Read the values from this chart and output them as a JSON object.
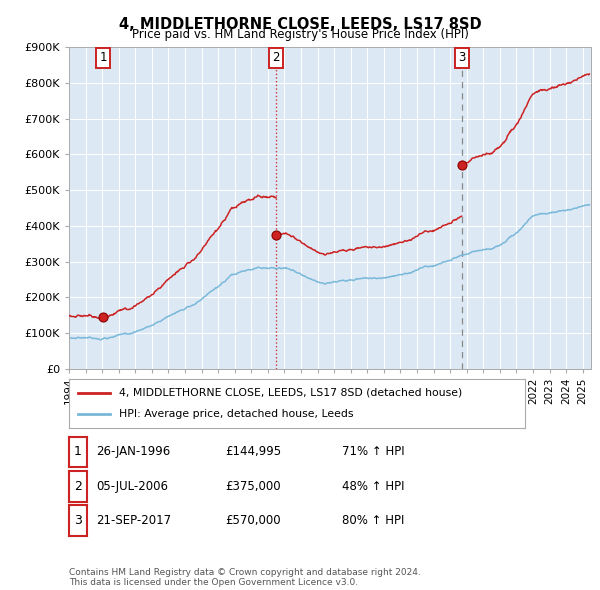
{
  "title": "4, MIDDLETHORNE CLOSE, LEEDS, LS17 8SD",
  "subtitle": "Price paid vs. HM Land Registry's House Price Index (HPI)",
  "plot_bg_color": "#dce9f5",
  "yticks": [
    0,
    100000,
    200000,
    300000,
    400000,
    500000,
    600000,
    700000,
    800000,
    900000
  ],
  "ytick_labels": [
    "£0",
    "£100K",
    "£200K",
    "£300K",
    "£400K",
    "£500K",
    "£600K",
    "£700K",
    "£800K",
    "£900K"
  ],
  "hpi_line_color": "#7ab8d9",
  "price_line_color": "#cc2222",
  "sale1_date": 1996.07,
  "sale1_price": 144995,
  "sale2_date": 2006.51,
  "sale2_price": 375000,
  "sale3_date": 2017.72,
  "sale3_price": 570000,
  "legend_label_price": "4, MIDDLETHORNE CLOSE, LEEDS, LS17 8SD (detached house)",
  "legend_label_hpi": "HPI: Average price, detached house, Leeds",
  "table_rows": [
    [
      "1",
      "26-JAN-1996",
      "£144,995",
      "71% ↑ HPI"
    ],
    [
      "2",
      "05-JUL-2006",
      "£375,000",
      "48% ↑ HPI"
    ],
    [
      "3",
      "21-SEP-2017",
      "£570,000",
      "80% ↑ HPI"
    ]
  ],
  "footer": "Contains HM Land Registry data © Crown copyright and database right 2024.\nThis data is licensed under the Open Government Licence v3.0.",
  "xmin": 1994.0,
  "xmax": 2025.5,
  "ylim": [
    0,
    900000
  ]
}
